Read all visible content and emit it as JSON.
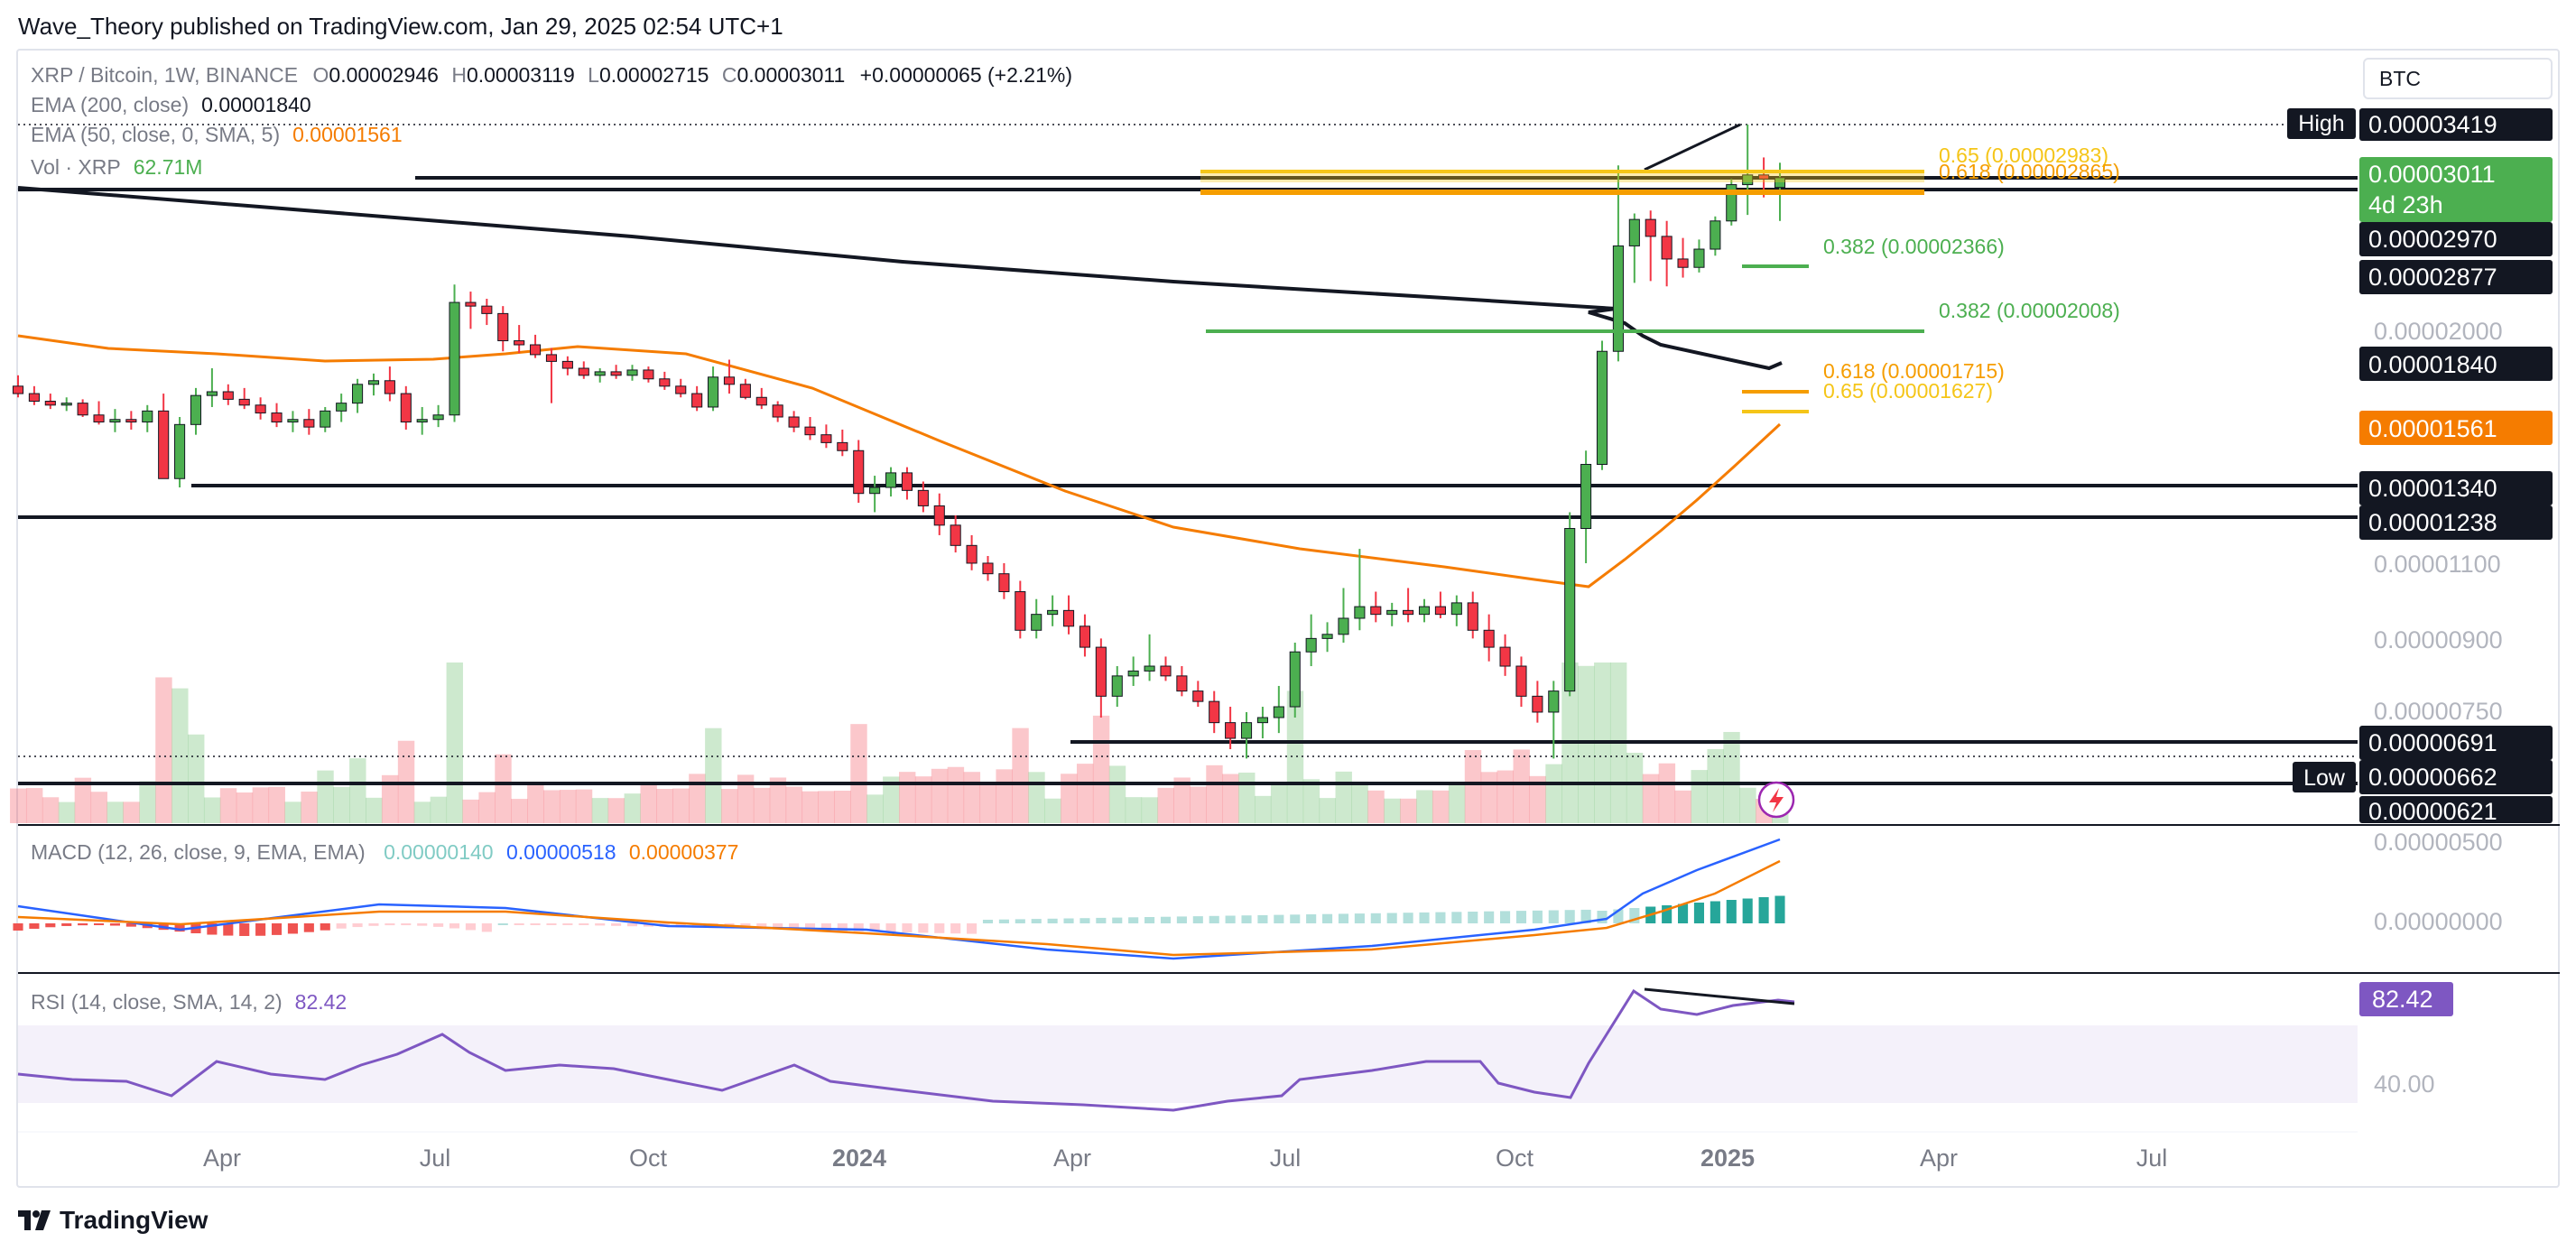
{
  "header": {
    "publisher_line": "Wave_Theory published on TradingView.com, Jan 29, 2025 02:54 UTC+1"
  },
  "currency_button": "BTC",
  "footer": {
    "brand": "TradingView"
  },
  "legend": {
    "symbol": "XRP / Bitcoin, 1W, BINANCE",
    "open_key": "O",
    "open": "0.00002946",
    "high_key": "H",
    "high": "0.00003119",
    "low_key": "L",
    "low": "0.00002715",
    "close_key": "C",
    "close": "0.00003011",
    "change": "+0.00000065 (+2.21%)",
    "ema200_label": "EMA (200, close)",
    "ema200_value": "0.00001840",
    "ema50_label": "EMA (50, close, 0, SMA, 5)",
    "ema50_value": "0.00001561",
    "vol_label": "Vol · XRP",
    "vol_value": "62.71M",
    "macd_label": "MACD (12, 26, close, 9, EMA, EMA)",
    "macd_hist": "0.00000140",
    "macd_line": "0.00000518",
    "macd_signal": "0.00000377",
    "rsi_label": "RSI (14, close, SMA, 14, 2)",
    "rsi_value": "82.42"
  },
  "colors": {
    "up": "#4caf50",
    "down": "#f23645",
    "ema200": "#131722",
    "ema50": "#f57c00",
    "fib_gold": "#f5c518",
    "fib_orange": "#f59d00",
    "fib_green": "#4caf50",
    "macd_line": "#2962ff",
    "macd_signal": "#f57c00",
    "rsi": "#7e57c2"
  },
  "fib_labels": {
    "f065_top": "0.65 (0.00002983)",
    "f0618_top": "0.618 (0.00002865)",
    "f0382_a": "0.382 (0.00002366)",
    "f0382_b": "0.382 (0.00002008)",
    "f0618_bot": "0.618 (0.00001715)",
    "f065_bot": "0.65 (0.00001627)"
  },
  "price_axis": {
    "high_label": "High",
    "high_value": "0.00003419",
    "current_value": "0.00003011",
    "countdown": "4d 23h",
    "level_a": "0.00002970",
    "level_b": "0.00002877",
    "tick_2000": "0.00002000",
    "ema200_badge": "0.00001840",
    "ema50_badge": "0.00001561",
    "sup_1340": "0.00001340",
    "sup_1238": "0.00001238",
    "tick_1100": "0.00001100",
    "tick_900": "0.00000900",
    "tick_750": "0.00000750",
    "sup_691": "0.00000691",
    "low_label": "Low",
    "low_value": "0.00000662",
    "sup_621": "0.00000621",
    "macd_tick_500": "0.00000500",
    "macd_tick_0": "0.00000000",
    "rsi_badge": "82.42",
    "rsi_tick_40": "40.00"
  },
  "time_axis": [
    "Apr",
    "Jul",
    "Oct",
    "2024",
    "Apr",
    "Jul",
    "Oct",
    "2025",
    "Apr",
    "Jul"
  ],
  "chart_data": {
    "type": "candlestick",
    "symbol": "XRP / Bitcoin",
    "interval": "1W",
    "exchange": "BINANCE",
    "x_ticks": [
      "Apr",
      "Jul",
      "Oct",
      "2024",
      "Apr",
      "Jul",
      "Oct",
      "2025",
      "Apr",
      "Jul"
    ],
    "candles_ohlc": [
      [
        1.76e-05,
        1.82e-05,
        1.7e-05,
        1.72e-05
      ],
      [
        1.72e-05,
        1.76e-05,
        1.66e-05,
        1.68e-05
      ],
      [
        1.68e-05,
        1.72e-05,
        1.64e-05,
        1.66e-05
      ],
      [
        1.66e-05,
        1.7e-05,
        1.63e-05,
        1.67e-05
      ],
      [
        1.67e-05,
        1.69e-05,
        1.6e-05,
        1.61e-05
      ],
      [
        1.61e-05,
        1.68e-05,
        1.57e-05,
        1.58e-05
      ],
      [
        1.58e-05,
        1.64e-05,
        1.54e-05,
        1.59e-05
      ],
      [
        1.59e-05,
        1.63e-05,
        1.55e-05,
        1.58e-05
      ],
      [
        1.58e-05,
        1.66e-05,
        1.54e-05,
        1.63e-05
      ],
      [
        1.63e-05,
        1.72e-05,
        1.5e-05,
        1.37e-05
      ],
      [
        1.37e-05,
        1.6e-05,
        1.34e-05,
        1.57e-05
      ],
      [
        1.57e-05,
        1.75e-05,
        1.53e-05,
        1.71e-05
      ],
      [
        1.71e-05,
        1.86e-05,
        1.65e-05,
        1.73e-05
      ],
      [
        1.73e-05,
        1.77e-05,
        1.66e-05,
        1.69e-05
      ],
      [
        1.69e-05,
        1.75e-05,
        1.64e-05,
        1.66e-05
      ],
      [
        1.66e-05,
        1.7e-05,
        1.59e-05,
        1.62e-05
      ],
      [
        1.62e-05,
        1.67e-05,
        1.56e-05,
        1.58e-05
      ],
      [
        1.58e-05,
        1.63e-05,
        1.54e-05,
        1.59e-05
      ],
      [
        1.59e-05,
        1.64e-05,
        1.53e-05,
        1.56e-05
      ],
      [
        1.56e-05,
        1.65e-05,
        1.54e-05,
        1.63e-05
      ],
      [
        1.63e-05,
        1.72e-05,
        1.58e-05,
        1.67e-05
      ],
      [
        1.67e-05,
        1.8e-05,
        1.62e-05,
        1.77e-05
      ],
      [
        1.77e-05,
        1.83e-05,
        1.71e-05,
        1.79e-05
      ],
      [
        1.79e-05,
        1.87e-05,
        1.68e-05,
        1.72e-05
      ],
      [
        1.72e-05,
        1.76e-05,
        1.55e-05,
        1.58e-05
      ],
      [
        1.58e-05,
        1.65e-05,
        1.53e-05,
        1.59e-05
      ],
      [
        1.59e-05,
        1.66e-05,
        1.56e-05,
        1.61e-05
      ],
      [
        1.61e-05,
        2.32e-05,
        1.58e-05,
        2.22e-05
      ],
      [
        2.22e-05,
        2.28e-05,
        2.08e-05,
        2.2e-05
      ],
      [
        2.2e-05,
        2.24e-05,
        2.1e-05,
        2.16e-05
      ],
      [
        2.16e-05,
        2.2e-05,
        1.96e-05,
        2.02e-05
      ],
      [
        2.02e-05,
        2.1e-05,
        1.95e-05,
        2e-05
      ],
      [
        2e-05,
        2.05e-05,
        1.92e-05,
        1.94e-05
      ],
      [
        1.94e-05,
        1.98e-05,
        1.67e-05,
        1.9e-05
      ],
      [
        1.9e-05,
        1.93e-05,
        1.82e-05,
        1.86e-05
      ],
      [
        1.86e-05,
        1.9e-05,
        1.8e-05,
        1.82e-05
      ],
      [
        1.82e-05,
        1.86e-05,
        1.78e-05,
        1.84e-05
      ],
      [
        1.84e-05,
        1.88e-05,
        1.8e-05,
        1.82e-05
      ],
      [
        1.82e-05,
        1.88e-05,
        1.79e-05,
        1.85e-05
      ],
      [
        1.85e-05,
        1.87e-05,
        1.78e-05,
        1.8e-05
      ],
      [
        1.8e-05,
        1.84e-05,
        1.74e-05,
        1.76e-05
      ],
      [
        1.76e-05,
        1.8e-05,
        1.7e-05,
        1.72e-05
      ],
      [
        1.72e-05,
        1.76e-05,
        1.63e-05,
        1.65e-05
      ],
      [
        1.65e-05,
        1.87e-05,
        1.63e-05,
        1.81e-05
      ],
      [
        1.81e-05,
        1.91e-05,
        1.72e-05,
        1.77e-05
      ],
      [
        1.77e-05,
        1.8e-05,
        1.69e-05,
        1.7e-05
      ],
      [
        1.7e-05,
        1.75e-05,
        1.64e-05,
        1.66e-05
      ],
      [
        1.66e-05,
        1.68e-05,
        1.58e-05,
        1.6e-05
      ],
      [
        1.6e-05,
        1.63e-05,
        1.54e-05,
        1.56e-05
      ],
      [
        1.56e-05,
        1.6e-05,
        1.51e-05,
        1.53e-05
      ],
      [
        1.53e-05,
        1.57e-05,
        1.48e-05,
        1.5e-05
      ],
      [
        1.5e-05,
        1.55e-05,
        1.45e-05,
        1.47e-05
      ],
      [
        1.47e-05,
        1.51e-05,
        1.29e-05,
        1.32e-05
      ],
      [
        1.32e-05,
        1.38e-05,
        1.26e-05,
        1.34e-05
      ],
      [
        1.34e-05,
        1.41e-05,
        1.31e-05,
        1.39e-05
      ],
      [
        1.39e-05,
        1.41e-05,
        1.3e-05,
        1.33e-05
      ],
      [
        1.33e-05,
        1.36e-05,
        1.26e-05,
        1.28e-05
      ],
      [
        1.28e-05,
        1.32e-05,
        1.19e-05,
        1.22e-05
      ],
      [
        1.22e-05,
        1.25e-05,
        1.14e-05,
        1.16e-05
      ],
      [
        1.16e-05,
        1.19e-05,
        1.09e-05,
        1.11e-05
      ],
      [
        1.11e-05,
        1.13e-05,
        1.06e-05,
        1.08e-05
      ],
      [
        1.08e-05,
        1.11e-05,
        1.01e-05,
        1.03e-05
      ],
      [
        1.03e-05,
        1.06e-05,
        9.1e-06,
        9.3e-06
      ],
      [
        9.3e-06,
        1.01e-05,
        9.1e-06,
        9.7e-06
      ],
      [
        9.7e-06,
        1.02e-05,
        9.4e-06,
        9.8e-06
      ],
      [
        9.8e-06,
        1.02e-05,
        9.2e-06,
        9.4e-06
      ],
      [
        9.4e-06,
        9.7e-06,
        8.7e-06,
        8.9e-06
      ],
      [
        8.9e-06,
        9.1e-06,
        7.5e-06,
        7.9e-06
      ],
      [
        7.9e-06,
        8.5e-06,
        7.7e-06,
        8.3e-06
      ],
      [
        8.3e-06,
        8.7e-06,
        8.1e-06,
        8.4e-06
      ],
      [
        8.4e-06,
        9.2e-06,
        8.2e-06,
        8.5e-06
      ],
      [
        8.5e-06,
        8.7e-06,
        8.2e-06,
        8.3e-06
      ],
      [
        8.3e-06,
        8.5e-06,
        7.9e-06,
        8e-06
      ],
      [
        8e-06,
        8.2e-06,
        7.7e-06,
        7.8e-06
      ],
      [
        7.8e-06,
        8e-06,
        7.2e-06,
        7.4e-06
      ],
      [
        7.4e-06,
        7.7e-06,
        6.9e-06,
        7.1e-06
      ],
      [
        7.1e-06,
        7.6e-06,
        6.8e-06,
        7.4e-06
      ],
      [
        7.4e-06,
        7.7e-06,
        7.1e-06,
        7.5e-06
      ],
      [
        7.5e-06,
        8.1e-06,
        7.2e-06,
        7.7e-06
      ],
      [
        7.7e-06,
        9e-06,
        7.5e-06,
        8.8e-06
      ],
      [
        8.8e-06,
        9.7e-06,
        8.5e-06,
        9.1e-06
      ],
      [
        9.1e-06,
        9.5e-06,
        8.8e-06,
        9.2e-06
      ],
      [
        9.2e-06,
        1.04e-05,
        9e-06,
        9.6e-06
      ],
      [
        9.6e-06,
        1.15e-05,
        9.3e-06,
        9.9e-06
      ],
      [
        9.9e-06,
        1.03e-05,
        9.5e-06,
        9.7e-06
      ],
      [
        9.7e-06,
        1e-05,
        9.4e-06,
        9.8e-06
      ],
      [
        9.8e-06,
        1.04e-05,
        9.5e-06,
        9.7e-06
      ],
      [
        9.7e-06,
        1.01e-05,
        9.5e-06,
        9.9e-06
      ],
      [
        9.9e-06,
        1.03e-05,
        9.6e-06,
        9.7e-06
      ],
      [
        9.7e-06,
        1.02e-05,
        9.4e-06,
        1e-05
      ],
      [
        1e-05,
        1.03e-05,
        9.1e-06,
        9.3e-06
      ],
      [
        9.3e-06,
        9.7e-06,
        8.6e-06,
        8.9e-06
      ],
      [
        8.9e-06,
        9.2e-06,
        8.3e-06,
        8.5e-06
      ],
      [
        8.5e-06,
        8.7e-06,
        7.7e-06,
        7.9e-06
      ],
      [
        7.9e-06,
        8.2e-06,
        7.4e-06,
        7.6e-06
      ],
      [
        7.6e-06,
        8.2e-06,
        6.8e-06,
        8e-06
      ],
      [
        8e-06,
        1.26e-05,
        7.9e-06,
        1.21e-05
      ],
      [
        1.21e-05,
        1.47e-05,
        1.11e-05,
        1.42e-05
      ],
      [
        1.42e-05,
        2.02e-05,
        1.4e-05,
        1.96e-05
      ],
      [
        1.96e-05,
        3.1e-05,
        1.9e-05,
        2.55e-05
      ],
      [
        2.55e-05,
        2.76e-05,
        2.33e-05,
        2.72e-05
      ],
      [
        2.72e-05,
        2.78e-05,
        2.34e-05,
        2.61e-05
      ],
      [
        2.61e-05,
        2.71e-05,
        2.31e-05,
        2.47e-05
      ],
      [
        2.47e-05,
        2.6e-05,
        2.36e-05,
        2.42e-05
      ],
      [
        2.42e-05,
        2.59e-05,
        2.39e-05,
        2.53e-05
      ],
      [
        2.53e-05,
        2.74e-05,
        2.49e-05,
        2.71e-05
      ],
      [
        2.71e-05,
        3e-05,
        2.68e-05,
        2.96e-05
      ],
      [
        2.96e-05,
        3.42e-05,
        2.75e-05,
        3.03e-05
      ],
      [
        3.03e-05,
        3.16e-05,
        2.87e-05,
        3e-05
      ],
      [
        2.94e-05,
        3.12e-05,
        2.71e-05,
        3.01e-05
      ]
    ],
    "ema200": {
      "last": 1.84e-05
    },
    "ema50": {
      "last": 1.561e-05
    },
    "horizontal_levels": [
      2.97e-05,
      2.877e-05,
      1.34e-05,
      1.238e-05,
      6.91e-06,
      6.21e-06
    ],
    "high": 3.419e-05,
    "low": 6.62e-06,
    "fib_levels": [
      {
        "label": "0.65 (0.00002983)",
        "value": 2.983e-05
      },
      {
        "label": "0.618 (0.00002865)",
        "value": 2.865e-05
      },
      {
        "label": "0.382 (0.00002366)",
        "value": 2.366e-05
      },
      {
        "label": "0.382 (0.00002008)",
        "value": 2.008e-05
      },
      {
        "label": "0.618 (0.00001715)",
        "value": 1.715e-05
      },
      {
        "label": "0.65 (0.00001627)",
        "value": 1.627e-05
      }
    ],
    "volume_last": "62.71M",
    "macd": {
      "hist": 1.4e-06,
      "macd": 5.18e-06,
      "signal": 3.77e-06
    },
    "rsi": {
      "value": 82.42
    }
  }
}
